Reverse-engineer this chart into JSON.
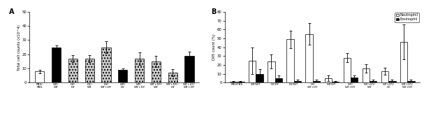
{
  "panel_A": {
    "title": "A",
    "ylabel": "Total cell counts (x10^4)",
    "ylim": [
      0,
      50
    ],
    "yticks": [
      0,
      10,
      20,
      30,
      40,
      50
    ],
    "categories": [
      "PBS/\nPBS",
      "WT/\nWT",
      "DY/\nDY",
      "DY/\nWT",
      "DY/\nWT+DY",
      "WT/\nDY",
      "WT/\nWT+DY",
      "WT+DY/\nWT",
      "WT+DY/\nDY",
      "WT+DY/\nWT+DY"
    ],
    "values": [
      8,
      25,
      17,
      17,
      25,
      9,
      17,
      15,
      7,
      19
    ],
    "errors": [
      1.2,
      1.2,
      2.5,
      2.5,
      4,
      1.2,
      4.5,
      4,
      2.5,
      3
    ],
    "colors": [
      "white",
      "black",
      "#cccccc",
      "#cccccc",
      "#cccccc",
      "black",
      "#cccccc",
      "#cccccc",
      "#cccccc",
      "black"
    ],
    "hatches": [
      "",
      "",
      "....",
      "....",
      "....",
      "",
      "....",
      "....",
      "....",
      ""
    ]
  },
  "panel_B": {
    "title": "B",
    "ylabel": "Diff. count (%)",
    "ylim": [
      0,
      80
    ],
    "yticks": [
      0,
      10,
      20,
      30,
      40,
      50,
      60,
      70,
      80
    ],
    "categories": [
      "PBS/PBS",
      "WT/WT",
      "DY/DY",
      "DY/WT",
      "DY/\nWT+DY",
      "WT/DY",
      "WT/\nWT+DY",
      "WT+DY/\nWT",
      "WT+DY/\nDY",
      "WT+DY/\nWT+DY"
    ],
    "neutrophil_values": [
      1,
      25,
      24,
      49,
      55,
      5,
      28,
      16,
      13,
      46
    ],
    "neutrophil_errors": [
      0.5,
      15,
      8,
      10,
      12,
      3,
      5,
      5,
      4,
      20
    ],
    "eosinophil_values": [
      1,
      10,
      5,
      2,
      2,
      1,
      6,
      2,
      2,
      2
    ],
    "eosinophil_errors": [
      0.5,
      5,
      3,
      1,
      1,
      1,
      2,
      1,
      1,
      1
    ],
    "legend_labels": [
      "Neutrophil",
      "Eosinophil"
    ]
  }
}
